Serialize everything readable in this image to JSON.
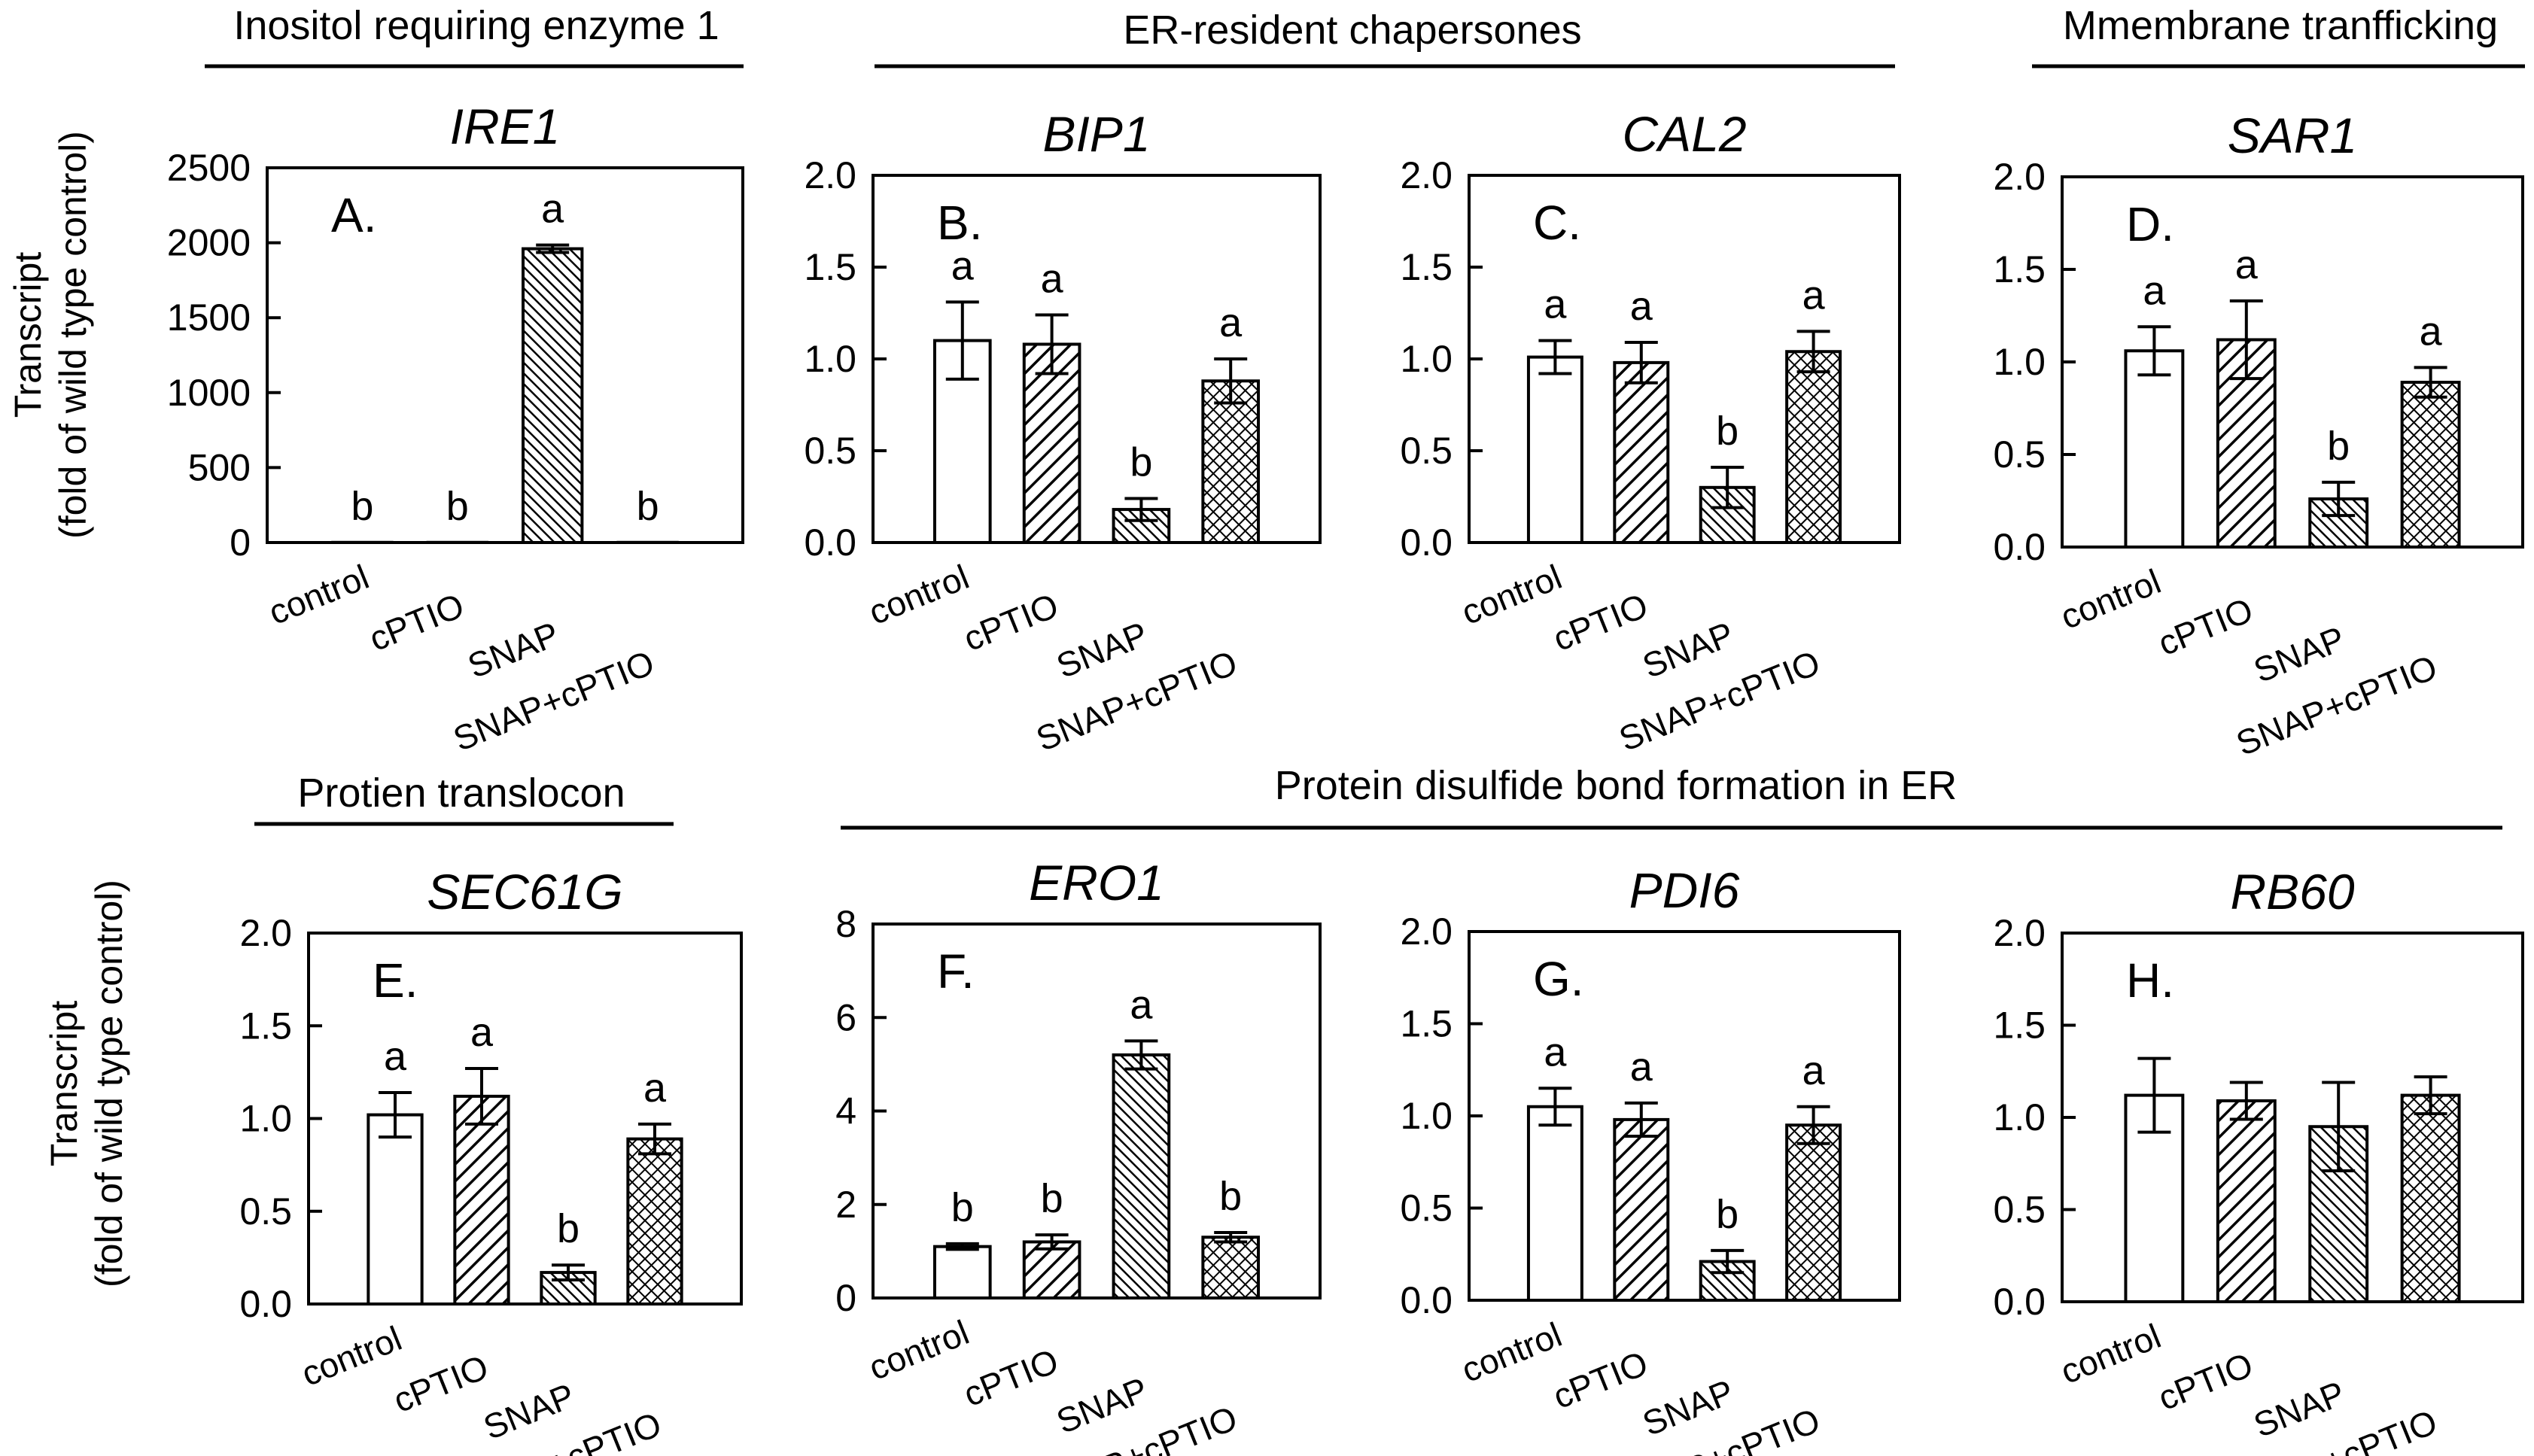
{
  "figure": {
    "ylabel_line1": "Transcript",
    "ylabel_line2": "(fold of wild type control)"
  },
  "groups": [
    {
      "label": "Inositol requiring enzyme 1"
    },
    {
      "label": "ER-resident chapersones"
    },
    {
      "label": "Mmembrane tranfficking"
    },
    {
      "label": "Protien translocon"
    },
    {
      "label": "Protein disulfide bond formation in ER"
    }
  ],
  "chart_data": [
    {
      "type": "bar",
      "title": "IRE1",
      "panel": "A.",
      "categories": [
        "control",
        "cPTIO",
        "SNAP",
        "SNAP+cPTIO"
      ],
      "values": [
        1,
        1,
        1960,
        1
      ],
      "errors": [
        0,
        0,
        25,
        0
      ],
      "significance": [
        "b",
        "b",
        "a",
        "b"
      ],
      "ylim": [
        0,
        2500
      ],
      "yticks": [
        "0",
        "500",
        "1000",
        "1500",
        "2000",
        "2500"
      ],
      "ylabel": "Transcript (fold of wild type control)"
    },
    {
      "type": "bar",
      "title": "BIP1",
      "panel": "B.",
      "categories": [
        "control",
        "cPTIO",
        "SNAP",
        "SNAP+cPTIO"
      ],
      "values": [
        1.1,
        1.08,
        0.18,
        0.88
      ],
      "errors": [
        0.21,
        0.16,
        0.06,
        0.12
      ],
      "significance": [
        "a",
        "a",
        "b",
        "a"
      ],
      "ylim": [
        0,
        2.0
      ],
      "yticks": [
        "0.0",
        "0.5",
        "1.0",
        "1.5",
        "2.0"
      ]
    },
    {
      "type": "bar",
      "title": "CAL2",
      "panel": "C.",
      "categories": [
        "control",
        "cPTIO",
        "SNAP",
        "SNAP+cPTIO"
      ],
      "values": [
        1.01,
        0.98,
        0.3,
        1.04
      ],
      "errors": [
        0.09,
        0.11,
        0.11,
        0.11
      ],
      "significance": [
        "a",
        "a",
        "b",
        "a"
      ],
      "ylim": [
        0,
        2.0
      ],
      "yticks": [
        "0.0",
        "0.5",
        "1.0",
        "1.5",
        "2.0"
      ]
    },
    {
      "type": "bar",
      "title": "SAR1",
      "panel": "D.",
      "categories": [
        "control",
        "cPTIO",
        "SNAP",
        "SNAP+cPTIO"
      ],
      "values": [
        1.06,
        1.12,
        0.26,
        0.89
      ],
      "errors": [
        0.13,
        0.21,
        0.09,
        0.08
      ],
      "significance": [
        "a",
        "a",
        "b",
        "a"
      ],
      "ylim": [
        0,
        2.0
      ],
      "yticks": [
        "0.0",
        "0.5",
        "1.0",
        "1.5",
        "2.0"
      ]
    },
    {
      "type": "bar",
      "title": "SEC61G",
      "panel": "E.",
      "categories": [
        "control",
        "cPTIO",
        "SNAP",
        "SNAP+cPTIO"
      ],
      "values": [
        1.02,
        1.12,
        0.17,
        0.89
      ],
      "errors": [
        0.12,
        0.15,
        0.04,
        0.08
      ],
      "significance": [
        "a",
        "a",
        "b",
        "a"
      ],
      "ylim": [
        0,
        2.0
      ],
      "yticks": [
        "0.0",
        "0.5",
        "1.0",
        "1.5",
        "2.0"
      ],
      "ylabel": "Transcript (fold of wild type control)"
    },
    {
      "type": "bar",
      "title": "ERO1",
      "panel": "F.",
      "categories": [
        "control",
        "cPTIO",
        "SNAP",
        "SNAP+cPTIO"
      ],
      "values": [
        1.1,
        1.2,
        5.2,
        1.3
      ],
      "errors": [
        0.06,
        0.15,
        0.3,
        0.1
      ],
      "significance": [
        "b",
        "b",
        "a",
        "b"
      ],
      "ylim": [
        0,
        8
      ],
      "yticks": [
        "0",
        "2",
        "4",
        "6",
        "8"
      ]
    },
    {
      "type": "bar",
      "title": "PDI6",
      "panel": "G.",
      "categories": [
        "control",
        "cPTIO",
        "SNAP",
        "SNAP+cPTIO"
      ],
      "values": [
        1.05,
        0.98,
        0.21,
        0.95
      ],
      "errors": [
        0.1,
        0.09,
        0.06,
        0.1
      ],
      "significance": [
        "a",
        "a",
        "b",
        "a"
      ],
      "ylim": [
        0,
        2.0
      ],
      "yticks": [
        "0.0",
        "0.5",
        "1.0",
        "1.5",
        "2.0"
      ]
    },
    {
      "type": "bar",
      "title": "RB60",
      "panel": "H.",
      "categories": [
        "control",
        "cPTIO",
        "SNAP",
        "SNAP+cPTIO"
      ],
      "values": [
        1.12,
        1.09,
        0.95,
        1.12
      ],
      "errors": [
        0.2,
        0.1,
        0.24,
        0.1
      ],
      "significance": [
        "",
        "",
        "",
        ""
      ],
      "ylim": [
        0,
        2.0
      ],
      "yticks": [
        "0.0",
        "0.5",
        "1.0",
        "1.5",
        "2.0"
      ]
    }
  ]
}
